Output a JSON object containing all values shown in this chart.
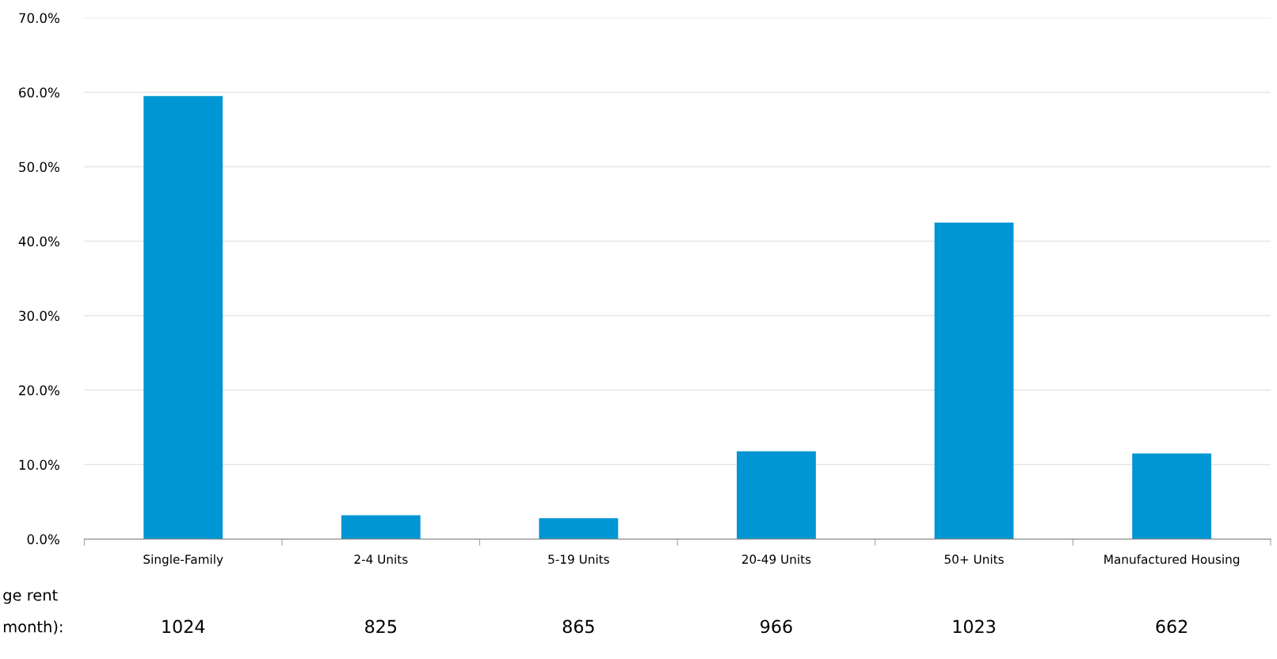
{
  "chart_data": {
    "type": "bar",
    "categories": [
      "Single-Family",
      "2-4 Units",
      "5-19 Units",
      "20-49 Units",
      "50+ Units",
      "Manufactured Housing"
    ],
    "values": [
      59.5,
      3.2,
      2.8,
      11.8,
      42.5,
      11.5
    ],
    "color": "#0096d3",
    "ylim": [
      0,
      70
    ],
    "yticks": [
      {
        "value": 0,
        "label": "0.0%"
      },
      {
        "value": 10,
        "label": "10.0%"
      },
      {
        "value": 20,
        "label": "20.0%"
      },
      {
        "value": 30,
        "label": "30.0%"
      },
      {
        "value": 40,
        "label": "40.0%"
      },
      {
        "value": 50,
        "label": "50.0%"
      },
      {
        "value": 60,
        "label": "60.0%"
      },
      {
        "value": 70,
        "label": "70.0%"
      }
    ],
    "grid": "y",
    "annotations": [
      "ge rent",
      "month):",
      "1024",
      "825",
      "865",
      "966",
      "1023",
      "662"
    ]
  }
}
